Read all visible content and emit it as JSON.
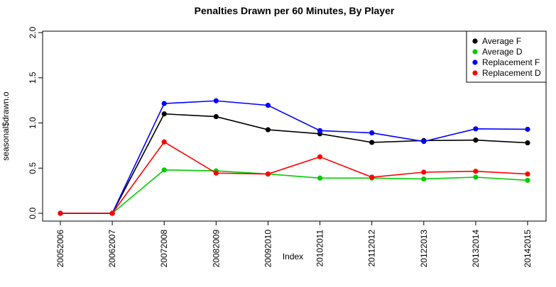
{
  "chart_data": {
    "type": "line",
    "title": "Penalties Drawn per 60 Minutes, By Player",
    "xlabel": "Index",
    "ylabel": "seasonal$drawn.o",
    "ylim": [
      0,
      2.0
    ],
    "yticks": [
      "0.0",
      "0.5",
      "1.0",
      "1.5",
      "2.0"
    ],
    "ytick_values": [
      0,
      0.5,
      1.0,
      1.5,
      2.0
    ],
    "categories": [
      "20052006",
      "20062007",
      "20072008",
      "20082009",
      "20092010",
      "20102011",
      "20112012",
      "20122013",
      "20132014",
      "20142015"
    ],
    "legend_position": "top-right",
    "series": [
      {
        "name": "Average F",
        "color": "#000000",
        "values": [
          0.0,
          0.0,
          1.1,
          1.07,
          0.925,
          0.88,
          0.785,
          0.805,
          0.81,
          0.78
        ]
      },
      {
        "name": "Average D",
        "color": "#00cd00",
        "values": [
          0.0,
          0.0,
          0.48,
          0.47,
          0.435,
          0.39,
          0.39,
          0.38,
          0.4,
          0.365
        ]
      },
      {
        "name": "Replacement F",
        "color": "#0000ff",
        "values": [
          0.0,
          0.0,
          1.215,
          1.245,
          1.195,
          0.915,
          0.89,
          0.795,
          0.935,
          0.93
        ]
      },
      {
        "name": "Replacement D",
        "color": "#ff0000",
        "values": [
          0.0,
          0.0,
          0.79,
          0.445,
          0.435,
          0.625,
          0.4,
          0.455,
          0.465,
          0.435
        ]
      }
    ]
  }
}
